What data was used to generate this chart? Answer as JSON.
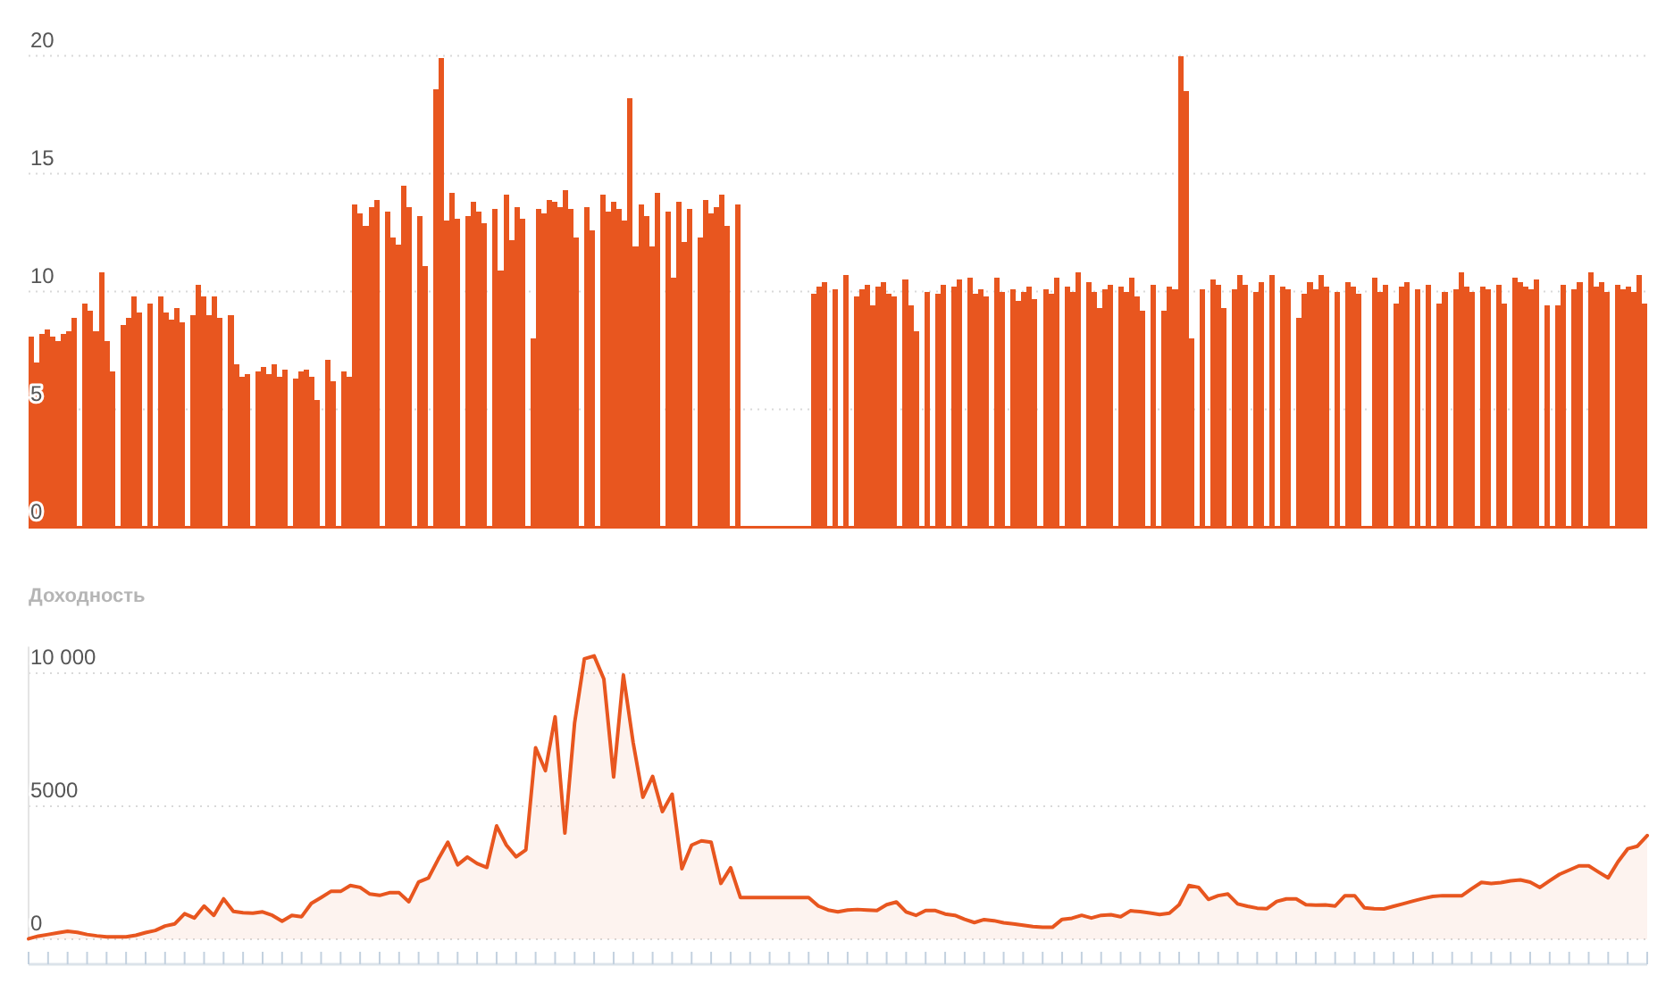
{
  "chart_data": [
    {
      "type": "bar",
      "categories": [
        null,
        null,
        null,
        null,
        null,
        null,
        null,
        null,
        null,
        null,
        null,
        null,
        null,
        null,
        null,
        null,
        null,
        null,
        null,
        null,
        null,
        null,
        null,
        null,
        null,
        null,
        null,
        null,
        null,
        null,
        null,
        null,
        null,
        null,
        null,
        null,
        null,
        null,
        null,
        null,
        null,
        null,
        null,
        null,
        null,
        null,
        null,
        null,
        null,
        null,
        null,
        null,
        null,
        null,
        null,
        null,
        null,
        null,
        null,
        null,
        null,
        null,
        null,
        null,
        null,
        null,
        null,
        null,
        null,
        null,
        null,
        null,
        null,
        null,
        null,
        null,
        null,
        null,
        null,
        null,
        null,
        null,
        null,
        null,
        null,
        null,
        null,
        null,
        null,
        null,
        null,
        null,
        null,
        null,
        null,
        null,
        null,
        null,
        null,
        null,
        null,
        null,
        null,
        null,
        null,
        null,
        null,
        null,
        null,
        null,
        null,
        null,
        null,
        null,
        null,
        null,
        null,
        null,
        null,
        null,
        null,
        null,
        null,
        null,
        null,
        null,
        null,
        null,
        null,
        null,
        null,
        null,
        null,
        null,
        null,
        null,
        null,
        null,
        null,
        null,
        null,
        null,
        null,
        null,
        null,
        null,
        null,
        null,
        null,
        null,
        null,
        null,
        null,
        null,
        null,
        null,
        null,
        null,
        null,
        null,
        null,
        null,
        null,
        null,
        null,
        null,
        null,
        null,
        null,
        null,
        null,
        null,
        null,
        null,
        null,
        null,
        null,
        null,
        null,
        null,
        null,
        null,
        null,
        null,
        null,
        null,
        null,
        null,
        null,
        null,
        null,
        null,
        null,
        null,
        null,
        null,
        null,
        null,
        null,
        null,
        null,
        null,
        null,
        null,
        null,
        null,
        null,
        null,
        null,
        null,
        null,
        null,
        null,
        null,
        null,
        null,
        null,
        null,
        null,
        null,
        null,
        null,
        null,
        null,
        null,
        null,
        null,
        null,
        null,
        null,
        null,
        null,
        null,
        null,
        null,
        null,
        null,
        null,
        null,
        null,
        null,
        null,
        null,
        null,
        null,
        null,
        null,
        null,
        null,
        null,
        null,
        null,
        null,
        null,
        null,
        null,
        null,
        null,
        null,
        null,
        null,
        null,
        null,
        null,
        null,
        null,
        null,
        null,
        null,
        null,
        null,
        null,
        null,
        null,
        null,
        null,
        null,
        null,
        null,
        null,
        null,
        null,
        null,
        null,
        null,
        null,
        null,
        null,
        null,
        null,
        null,
        null,
        null,
        null,
        null,
        null,
        null,
        null,
        null,
        null
      ],
      "values": [
        8.1,
        7.0,
        8.2,
        8.4,
        8.1,
        7.9,
        8.2,
        8.3,
        8.9,
        null,
        9.5,
        9.2,
        8.3,
        10.8,
        7.9,
        6.6,
        null,
        8.6,
        8.9,
        9.8,
        9.1,
        null,
        9.5,
        null,
        9.8,
        9.1,
        8.8,
        9.3,
        8.7,
        null,
        9.0,
        10.3,
        9.8,
        9.0,
        9.8,
        8.9,
        null,
        9.0,
        6.9,
        6.4,
        6.5,
        null,
        6.6,
        6.8,
        6.5,
        6.9,
        6.4,
        6.7,
        null,
        6.3,
        6.6,
        6.7,
        6.4,
        5.4,
        null,
        7.1,
        6.2,
        null,
        6.6,
        6.4,
        13.7,
        13.3,
        12.8,
        13.6,
        13.9,
        null,
        13.4,
        12.3,
        12.0,
        14.5,
        13.6,
        null,
        13.2,
        11.1,
        null,
        18.6,
        19.9,
        13.0,
        14.2,
        13.1,
        null,
        13.2,
        13.8,
        13.4,
        12.9,
        null,
        13.5,
        10.9,
        14.1,
        12.2,
        13.6,
        13.1,
        null,
        8.0,
        13.5,
        13.3,
        13.9,
        13.8,
        13.6,
        14.3,
        13.5,
        12.3,
        null,
        13.6,
        12.6,
        null,
        14.1,
        13.4,
        13.8,
        13.5,
        13.0,
        18.2,
        11.9,
        13.7,
        13.2,
        11.9,
        14.2,
        null,
        13.4,
        10.6,
        13.8,
        12.1,
        13.5,
        null,
        12.3,
        13.9,
        13.3,
        13.6,
        14.1,
        12.8,
        null,
        13.7,
        null,
        null,
        null,
        null,
        null,
        null,
        null,
        null,
        null,
        null,
        null,
        null,
        null,
        9.9,
        10.2,
        10.4,
        null,
        10.1,
        null,
        10.7,
        null,
        9.8,
        10.1,
        10.3,
        9.4,
        10.2,
        10.4,
        9.9,
        9.8,
        null,
        10.5,
        9.4,
        8.3,
        null,
        10.0,
        null,
        9.9,
        10.3,
        null,
        10.2,
        10.5,
        null,
        10.6,
        9.9,
        10.1,
        9.8,
        null,
        10.6,
        10.0,
        null,
        10.1,
        9.6,
        10.0,
        10.2,
        9.7,
        null,
        10.1,
        9.9,
        10.6,
        null,
        10.2,
        10.0,
        10.8,
        null,
        10.4,
        10.0,
        9.3,
        10.1,
        10.3,
        null,
        10.2,
        10.0,
        10.6,
        9.8,
        9.2,
        null,
        10.3,
        null,
        9.2,
        10.2,
        10.1,
        20.0,
        18.5,
        8.0,
        null,
        10.1,
        null,
        10.5,
        10.3,
        9.3,
        null,
        10.1,
        10.7,
        10.3,
        null,
        10.0,
        10.4,
        null,
        10.7,
        null,
        10.2,
        10.1,
        null,
        8.9,
        9.9,
        10.4,
        10.1,
        10.7,
        10.2,
        null,
        10.0,
        null,
        10.4,
        10.2,
        9.9,
        null,
        null,
        10.6,
        10.0,
        10.3,
        null,
        9.5,
        10.2,
        10.4,
        null,
        10.1,
        null,
        10.3,
        null,
        9.5,
        10.0,
        null,
        10.1,
        10.8,
        10.2,
        10.0,
        null,
        10.2,
        10.1,
        null,
        10.3,
        9.5,
        null,
        10.6,
        10.4,
        10.2,
        10.1,
        10.5,
        null,
        9.4,
        null,
        9.4,
        10.3,
        null,
        10.1,
        10.4,
        null,
        10.8,
        10.2,
        10.4,
        10.0,
        null,
        10.3,
        10.1,
        10.2,
        10.0,
        10.7,
        9.5
      ],
      "color": "#e8561f",
      "ylim": [
        0,
        20
      ],
      "yticks": [
        0,
        5,
        10,
        15,
        20
      ],
      "grid": "y",
      "tick_labels": "y"
    },
    {
      "type": "area",
      "ylabel": "Доходность",
      "categories": [
        null,
        null,
        null,
        null,
        null,
        null,
        null,
        null,
        null,
        null,
        null,
        null,
        null,
        null,
        null,
        null,
        null,
        null,
        null,
        null,
        null,
        null,
        null,
        null,
        null,
        null,
        null,
        null,
        null,
        null,
        null,
        null,
        null,
        null,
        null,
        null,
        null,
        null,
        null,
        null,
        null,
        null,
        null,
        null,
        null,
        null,
        null,
        null,
        null,
        null,
        null,
        null,
        null,
        null,
        null,
        null,
        null,
        null,
        null,
        null,
        null,
        null,
        null,
        null,
        null,
        null,
        null,
        null,
        null,
        null,
        null,
        null,
        null,
        null,
        null,
        null,
        null,
        null,
        null,
        null,
        null,
        null,
        null,
        null,
        null,
        null,
        null,
        null,
        null,
        null,
        null,
        null,
        null,
        null,
        null,
        null,
        null,
        null,
        null,
        null,
        null,
        null,
        null,
        null,
        null,
        null,
        null,
        null,
        null,
        null,
        null,
        null,
        null,
        null,
        null,
        null,
        null,
        null,
        null,
        null,
        null,
        null,
        null,
        null,
        null,
        null,
        null,
        null,
        null,
        null,
        null,
        null,
        null,
        null,
        null,
        null,
        null,
        null,
        null,
        null,
        null,
        null,
        null,
        null,
        null,
        null,
        null,
        null,
        null,
        null,
        null,
        null,
        null,
        null,
        null,
        null,
        null,
        null,
        null,
        null,
        null,
        null,
        null,
        null,
        null,
        null,
        null
      ],
      "values": [
        20,
        120,
        180,
        240,
        300,
        260,
        180,
        130,
        90,
        90,
        90,
        150,
        250,
        330,
        500,
        580,
        960,
        800,
        1250,
        900,
        1520,
        1050,
        1000,
        980,
        1030,
        900,
        680,
        900,
        850,
        1350,
        1570,
        1800,
        1800,
        2020,
        1950,
        1700,
        1650,
        1750,
        1750,
        1410,
        2150,
        2300,
        3000,
        3650,
        2800,
        3090,
        2850,
        2700,
        4260,
        3540,
        3100,
        3360,
        7200,
        6340,
        8360,
        3990,
        8140,
        10540,
        10650,
        9780,
        6100,
        9930,
        7400,
        5340,
        6120,
        4800,
        5450,
        2650,
        3540,
        3700,
        3650,
        2100,
        2690,
        1570,
        1570,
        1570,
        1570,
        1570,
        1570,
        1570,
        1570,
        1250,
        1100,
        1030,
        1100,
        1120,
        1100,
        1080,
        1300,
        1400,
        1030,
        900,
        1080,
        1080,
        950,
        900,
        750,
        630,
        740,
        700,
        620,
        580,
        530,
        480,
        450,
        450,
        750,
        790,
        900,
        800,
        900,
        920,
        850,
        1070,
        1040,
        990,
        930,
        980,
        1300,
        2020,
        1950,
        1500,
        1640,
        1700,
        1330,
        1240,
        1170,
        1150,
        1420,
        1520,
        1520,
        1300,
        1280,
        1290,
        1250,
        1640,
        1640,
        1180,
        1150,
        1140,
        1240,
        1340,
        1440,
        1530,
        1610,
        1640,
        1640,
        1640,
        1900,
        2140,
        2100,
        2130,
        2200,
        2230,
        2150,
        1950,
        2200,
        2440,
        2600,
        2760,
        2760,
        2530,
        2310,
        2910,
        3400,
        3500,
        3900
      ],
      "color": "#e8561f",
      "ylim": [
        0,
        11000
      ],
      "yticks": [
        0,
        5000,
        {
          "value": 10000,
          "label": "10 000"
        }
      ],
      "grid": "y",
      "tick_labels": "y"
    }
  ]
}
